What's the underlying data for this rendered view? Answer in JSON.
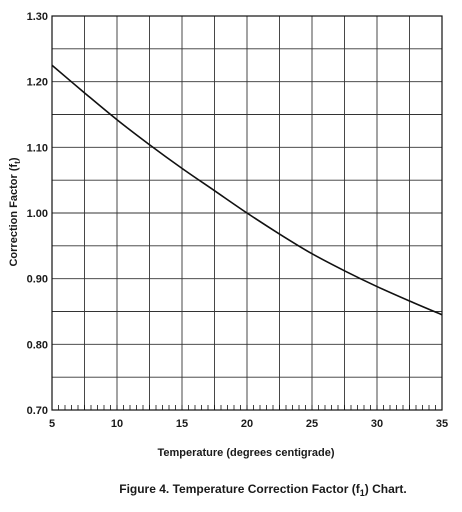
{
  "chart_data": {
    "type": "line",
    "title": "",
    "xlabel": "Temperature (degrees centigrade)",
    "ylabel_main": "Correction Factor (f",
    "ylabel_sub": "t",
    "ylabel_end": ")",
    "xlim": [
      5,
      35
    ],
    "ylim": [
      0.7,
      1.3
    ],
    "x_ticks": [
      "5",
      "10",
      "15",
      "20",
      "25",
      "30",
      "35"
    ],
    "y_ticks": [
      "0.70",
      "0.80",
      "0.90",
      "1.00",
      "1.10",
      "1.20",
      "1.30"
    ],
    "x_major_grid_step": 2.5,
    "y_major_grid_step": 0.05,
    "x_minor_tick_step": 0.5,
    "grid": true,
    "colors": {
      "line": "#111111",
      "grid": "#333333",
      "frame": "#111111"
    },
    "series": [
      {
        "x": [
          5,
          7.5,
          10,
          12.5,
          15,
          17.5,
          20,
          22.5,
          25,
          27.5,
          30,
          32.5,
          35
        ],
        "values": [
          1.225,
          1.183,
          1.142,
          1.104,
          1.068,
          1.034,
          1.0,
          0.968,
          0.938,
          0.912,
          0.888,
          0.866,
          0.845
        ]
      }
    ]
  },
  "caption": {
    "prefix": "Figure 4.  Temperature Correction Factor (f",
    "sub": "1",
    "suffix": ") Chart."
  }
}
